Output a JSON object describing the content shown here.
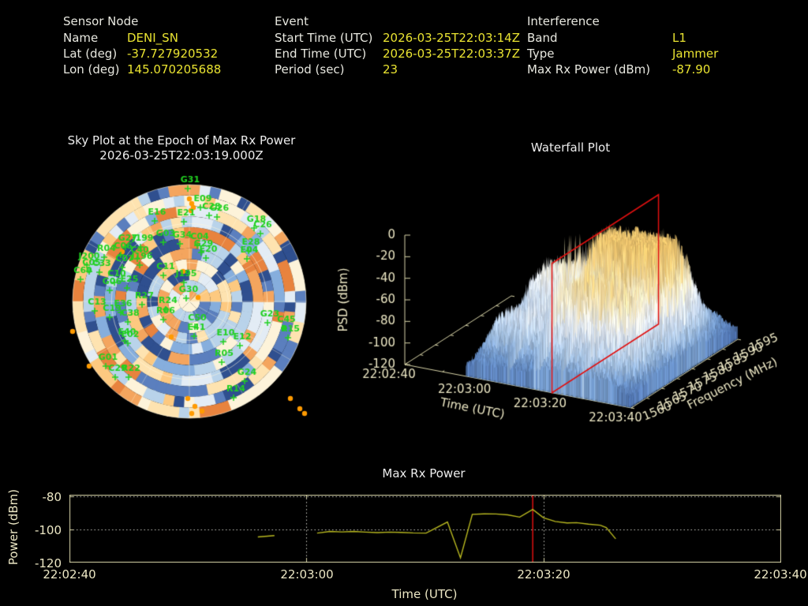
{
  "colors": {
    "background": "#000000",
    "label_white": "#e8e8e0",
    "value_yellow": "#e9e331",
    "plot_text": "#ece7c4",
    "axis": "#d8d4a8",
    "data_line": "#b9b920",
    "red_marker": "#e01010",
    "sat_green": "#21d121",
    "dot_orange": "#ff9a00"
  },
  "header": {
    "sensor_node": {
      "title": "Sensor Node",
      "rows": [
        {
          "label": "Name",
          "value": "DENI_SN"
        },
        {
          "label": "Lat (deg)",
          "value": "-37.727920532"
        },
        {
          "label": "Lon (deg)",
          "value": "145.070205688"
        }
      ]
    },
    "event": {
      "title": "Event",
      "rows": [
        {
          "label": "Start Time (UTC)",
          "value": "2026-03-25T22:03:14Z"
        },
        {
          "label": "End Time (UTC)",
          "value": "2026-03-25T22:03:37Z"
        },
        {
          "label": "Period (sec)",
          "value": "23"
        }
      ]
    },
    "interference": {
      "title": "Interference",
      "rows": [
        {
          "label": "Band",
          "value": "L1"
        },
        {
          "label": "Type",
          "value": "Jammer"
        },
        {
          "label": "Max Rx Power (dBm)",
          "value": "-87.90"
        }
      ]
    }
  },
  "chart_data": [
    {
      "id": "sky_plot",
      "type": "heatmap",
      "projection": "polar_sky",
      "title_line1": "Sky Plot at the Epoch of Max Rx Power",
      "title_line2": "2026-03-25T22:03:19.000Z",
      "seed": 11,
      "center": [
        160,
        160
      ],
      "radius": 148,
      "palette": [
        "#2f4f8f",
        "#5b7fbe",
        "#86aedd",
        "#b9d3ea",
        "#e3ecf5",
        "#fdf3da",
        "#fee3b0",
        "#fdc980",
        "#f4a55e",
        "#e8833e"
      ],
      "grid": {
        "ring_fractions": [
          0.3333,
          0.6667,
          1.0
        ],
        "spoke_step_deg": 30
      },
      "marker_offset": [
        -3,
        11
      ],
      "satellites": [
        [
          "G31",
          161,
          6
        ],
        [
          "E09",
          177,
          30
        ],
        [
          "E21",
          156,
          48
        ],
        [
          "C28",
          188,
          40
        ],
        [
          "G26",
          198,
          42
        ],
        [
          "E16",
          119,
          47
        ],
        [
          "G18",
          245,
          56
        ],
        [
          "C26",
          253,
          63
        ],
        [
          "G27",
          82,
          80
        ],
        [
          "J199",
          101,
          80
        ],
        [
          "G03",
          130,
          74
        ],
        [
          "G34",
          151,
          76
        ],
        [
          "C04",
          173,
          78
        ],
        [
          "R04",
          55,
          93
        ],
        [
          "C06",
          76,
          90
        ],
        [
          "C40",
          97,
          95
        ],
        [
          "J200",
          33,
          103
        ],
        [
          "C05",
          36,
          111
        ],
        [
          "C33",
          49,
          112
        ],
        [
          "C07",
          78,
          106
        ],
        [
          "J196",
          100,
          103
        ],
        [
          "G29",
          178,
          87
        ],
        [
          "E20",
          184,
          94
        ],
        [
          "E28",
          238,
          85
        ],
        [
          "E04",
          236,
          95
        ],
        [
          "C60",
          25,
          121
        ],
        [
          "C10",
          68,
          125
        ],
        [
          "E25",
          84,
          132
        ],
        [
          "C11",
          130,
          116
        ],
        [
          "G06",
          62,
          135
        ],
        [
          "J195",
          156,
          125
        ],
        [
          "G30",
          159,
          145
        ],
        [
          "C13",
          43,
          161
        ],
        [
          "R27",
          103,
          153
        ],
        [
          "E36",
          76,
          163
        ],
        [
          "C19",
          62,
          169
        ],
        [
          "R24",
          133,
          159
        ],
        [
          "C38",
          85,
          175
        ],
        [
          "R06",
          130,
          172
        ],
        [
          "E40",
          81,
          199
        ],
        [
          "E02",
          85,
          202
        ],
        [
          "G01",
          57,
          231
        ],
        [
          "C29",
          69,
          245
        ],
        [
          "R22",
          86,
          245
        ],
        [
          "C50",
          170,
          181
        ],
        [
          "E41",
          169,
          193
        ],
        [
          "E10",
          206,
          200
        ],
        [
          "E12",
          227,
          205
        ],
        [
          "R05",
          204,
          226
        ],
        [
          "G23",
          262,
          176
        ],
        [
          "C45",
          283,
          183
        ],
        [
          "R15",
          288,
          195
        ],
        [
          "G24",
          233,
          250
        ],
        [
          "R14",
          219,
          271
        ]
      ],
      "orange_dots": [
        [
          160,
          30
        ],
        [
          163,
          36
        ],
        [
          165,
          41
        ],
        [
          162,
          45
        ],
        [
          75,
          97
        ],
        [
          152,
          122
        ],
        [
          171,
          155
        ],
        [
          12,
          198
        ],
        [
          137,
          205
        ],
        [
          33,
          242
        ],
        [
          158,
          283
        ],
        [
          167,
          293
        ],
        [
          176,
          299
        ],
        [
          163,
          302
        ],
        [
          288,
          283
        ],
        [
          300,
          296
        ],
        [
          306,
          302
        ]
      ]
    },
    {
      "id": "waterfall",
      "type": "heatmap",
      "render": "surface3d",
      "title": "Waterfall Plot",
      "time_label": "Time (UTC)",
      "time_ticks": [
        "22:02:40",
        "22:03:00",
        "22:03:20",
        "22:03:40"
      ],
      "time_tick_sec": [
        0,
        20,
        40,
        60
      ],
      "freq_label": "Frequency (MHz)",
      "freq_ticks": [
        1560,
        1565,
        1570,
        1575,
        1580,
        1585,
        1590,
        1595
      ],
      "psd_label": "PSD (dBm)",
      "psd_ticks": [
        0,
        -20,
        -40,
        -60,
        -80,
        -100,
        -120
      ],
      "psd_range": [
        -120,
        0
      ],
      "time_range_sec": [
        0,
        60
      ],
      "freq_range_mhz": [
        1560,
        1595
      ],
      "data_start_sec": 16.2,
      "noise_floor_dbm": -112,
      "signal": {
        "lobe1_mhz": 1567.5,
        "lobe1_sigma": 3.0,
        "lobe2_mhz": 1581.0,
        "lobe2_sigma": 5.5,
        "pre_event_sec": [
          17,
          32
        ],
        "pre_gain_db": 46,
        "event_sec": [
          33.5,
          57
        ],
        "event_gain_db": 90
      },
      "red_plane_sec": 39,
      "cmap": [
        [
          -120,
          "#3b5ea5"
        ],
        [
          -100,
          "#6f97cc"
        ],
        [
          -85,
          "#a7c4e4"
        ],
        [
          -70,
          "#ccdcf0"
        ],
        [
          -58,
          "#e9eff7"
        ],
        [
          -48,
          "#f7f2de"
        ],
        [
          -35,
          "#f8e3ae"
        ],
        [
          -20,
          "#f4cf7d"
        ],
        [
          0,
          "#f0c060"
        ]
      ]
    },
    {
      "id": "max_rx_power",
      "type": "line",
      "title": "Max Rx Power",
      "xlabel": "Time (UTC)",
      "ylabel": "Power (dBm)",
      "x_ticks": [
        "22:02:40",
        "22:03:00",
        "22:03:20",
        "22:03:40"
      ],
      "x_tick_sec": [
        0,
        20,
        40,
        60
      ],
      "y_ticks": [
        -80,
        -100,
        -120
      ],
      "ylim": [
        -78.9,
        -120.0
      ],
      "x_range_sec": [
        0,
        60
      ],
      "dotted_vlines_sec": [
        20,
        40
      ],
      "dotted_hlines_dbm": [
        -80,
        -100
      ],
      "epoch_marker_sec": 39.1,
      "segments": [
        [
          [
            15.9,
            -104.8
          ],
          [
            17.3,
            -103.9
          ]
        ],
        [
          [
            20.9,
            -102.4
          ],
          [
            22,
            -101.4
          ],
          [
            23,
            -101.7
          ],
          [
            24,
            -101.4
          ],
          [
            25,
            -101.8
          ],
          [
            26,
            -102.1
          ],
          [
            27,
            -101.8
          ],
          [
            28,
            -102.0
          ],
          [
            29,
            -102.3
          ],
          [
            30.1,
            -102.4
          ],
          [
            31.9,
            -95.6
          ],
          [
            33.0,
            -117.6
          ],
          [
            34.0,
            -90.9
          ],
          [
            35,
            -90.6
          ],
          [
            36,
            -90.7
          ],
          [
            37,
            -91.2
          ],
          [
            38,
            -92.6
          ],
          [
            39.1,
            -87.9
          ],
          [
            40,
            -93.0
          ],
          [
            41,
            -95.3
          ],
          [
            42,
            -96.2
          ],
          [
            42.8,
            -96.0
          ],
          [
            43.8,
            -96.9
          ],
          [
            44.8,
            -97.6
          ],
          [
            45.3,
            -99.0
          ],
          [
            46.1,
            -105.9
          ]
        ]
      ]
    }
  ]
}
